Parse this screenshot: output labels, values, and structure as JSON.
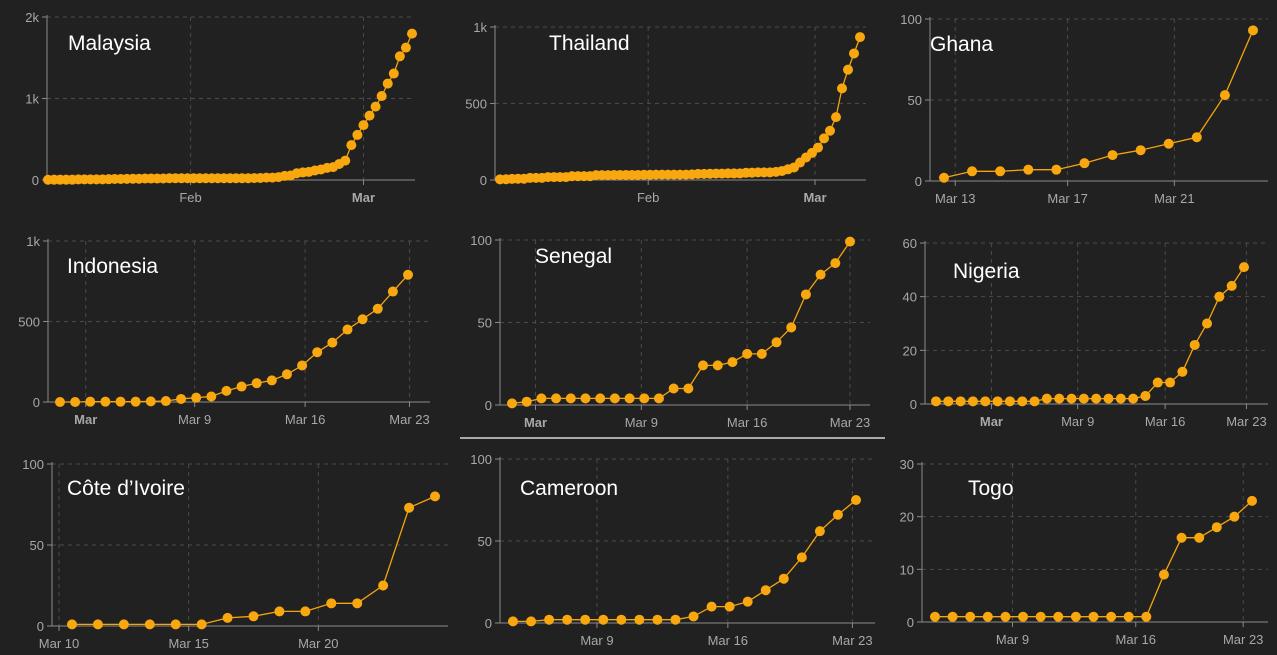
{
  "colors": {
    "background": "#212121",
    "series": "#f9a70e",
    "title": "#ffffff",
    "tick": "#a8a8a8"
  },
  "chart_data": [
    {
      "type": "line",
      "title": "Malaysia",
      "ylim": [
        0,
        2000
      ],
      "y_ticks": [
        {
          "value": 0,
          "label": "0"
        },
        {
          "value": 1000,
          "label": "1k"
        },
        {
          "value": 2000,
          "label": "2k"
        }
      ],
      "x_ticks": [
        {
          "index": 23.5,
          "label": "Feb"
        },
        {
          "index": 52,
          "label": "Mar"
        }
      ],
      "values": [
        3,
        4,
        4,
        4,
        4,
        7,
        8,
        8,
        8,
        8,
        10,
        12,
        12,
        14,
        16,
        16,
        18,
        18,
        18,
        19,
        22,
        22,
        22,
        22,
        22,
        22,
        22,
        22,
        22,
        22,
        22,
        22,
        22,
        22,
        23,
        25,
        29,
        29,
        36,
        50,
        55,
        83,
        93,
        99,
        117,
        129,
        149,
        158,
        197,
        238,
        428,
        553,
        673,
        790,
        900,
        1030,
        1183,
        1306,
        1518,
        1624,
        1796
      ]
    },
    {
      "type": "line",
      "title": "Thailand",
      "ylim": [
        0,
        1000
      ],
      "y_ticks": [
        {
          "value": 0,
          "label": "0"
        },
        {
          "value": 500,
          "label": "500"
        },
        {
          "value": 1000,
          "label": "1k"
        }
      ],
      "x_ticks": [
        {
          "index": 24.7,
          "label": "Feb"
        },
        {
          "index": 52.5,
          "label": "Mar"
        }
      ],
      "values": [
        4,
        5,
        7,
        8,
        8,
        14,
        14,
        14,
        19,
        19,
        19,
        19,
        25,
        25,
        25,
        25,
        32,
        32,
        32,
        33,
        33,
        33,
        33,
        33,
        34,
        34,
        35,
        35,
        35,
        35,
        35,
        35,
        37,
        40,
        40,
        41,
        42,
        42,
        43,
        43,
        43,
        47,
        48,
        50,
        50,
        50,
        53,
        59,
        70,
        82,
        114,
        147,
        177,
        212,
        272,
        322,
        411,
        599,
        721,
        827,
        934
      ]
    },
    {
      "type": "line",
      "title": "Ghana",
      "ylim": [
        0,
        100
      ],
      "y_ticks": [
        {
          "value": 0,
          "label": "0"
        },
        {
          "value": 50,
          "label": "50"
        },
        {
          "value": 100,
          "label": "100"
        }
      ],
      "x_ticks": [
        {
          "index": 0.4,
          "label": "Mar 13"
        },
        {
          "index": 4.4,
          "label": "Mar 17"
        },
        {
          "index": 8.2,
          "label": "Mar 21"
        }
      ],
      "values": [
        2,
        6,
        6,
        7,
        7,
        11,
        16,
        19,
        23,
        27,
        53,
        93
      ]
    },
    {
      "type": "line",
      "title": "Indonesia",
      "ylim": [
        0,
        1000
      ],
      "y_ticks": [
        {
          "value": 0,
          "label": "0"
        },
        {
          "value": 500,
          "label": "500"
        },
        {
          "value": 1000,
          "label": "1k"
        }
      ],
      "x_ticks": [
        {
          "index": 1.7,
          "label": "Mar"
        },
        {
          "index": 8.9,
          "label": "Mar 9"
        },
        {
          "index": 16.2,
          "label": "Mar 16"
        },
        {
          "index": 23.1,
          "label": "Mar 23"
        }
      ],
      "values": [
        0,
        0,
        2,
        2,
        2,
        2,
        4,
        6,
        19,
        27,
        34,
        69,
        96,
        117,
        134,
        172,
        227,
        309,
        369,
        450,
        514,
        579,
        686,
        790
      ]
    },
    {
      "type": "line",
      "title": "Senegal",
      "ylim": [
        0,
        100
      ],
      "y_ticks": [
        {
          "value": 0,
          "label": "0"
        },
        {
          "value": 50,
          "label": "50"
        },
        {
          "value": 100,
          "label": "100"
        }
      ],
      "x_ticks": [
        {
          "index": 1.6,
          "label": "Mar"
        },
        {
          "index": 8.8,
          "label": "Mar 9"
        },
        {
          "index": 16,
          "label": "Mar 16"
        },
        {
          "index": 23,
          "label": "Mar 23"
        }
      ],
      "values": [
        1,
        2,
        4,
        4,
        4,
        4,
        4,
        4,
        4,
        4,
        4,
        10,
        10,
        24,
        24,
        26,
        31,
        31,
        38,
        47,
        67,
        79,
        86,
        99
      ]
    },
    {
      "type": "line",
      "title": "Nigeria",
      "ylim": [
        0,
        60
      ],
      "y_ticks": [
        {
          "value": 0,
          "label": "0"
        },
        {
          "value": 20,
          "label": "20"
        },
        {
          "value": 40,
          "label": "40"
        },
        {
          "value": 60,
          "label": "60"
        }
      ],
      "x_ticks": [
        {
          "index": 4.5,
          "label": "Mar"
        },
        {
          "index": 11.5,
          "label": "Mar 9"
        },
        {
          "index": 18.6,
          "label": "Mar 16"
        },
        {
          "index": 25.2,
          "label": "Mar 23"
        }
      ],
      "values": [
        1,
        1,
        1,
        1,
        1,
        1,
        1,
        1,
        1,
        2,
        2,
        2,
        2,
        2,
        2,
        2,
        2,
        3,
        8,
        8,
        12,
        22,
        30,
        40,
        44,
        51
      ]
    },
    {
      "type": "line",
      "title": "Côte d’Ivoire",
      "ylim": [
        0,
        100
      ],
      "y_ticks": [
        {
          "value": 0,
          "label": "0"
        },
        {
          "value": 50,
          "label": "50"
        },
        {
          "value": 100,
          "label": "100"
        }
      ],
      "x_ticks": [
        {
          "index": -0.5,
          "label": "Mar 10"
        },
        {
          "index": 4.5,
          "label": "Mar 15"
        },
        {
          "index": 9.5,
          "label": "Mar 20"
        }
      ],
      "values": [
        1,
        1,
        1,
        1,
        1,
        1,
        5,
        6,
        9,
        9,
        14,
        14,
        25,
        73,
        80
      ]
    },
    {
      "type": "line",
      "title": "Cameroon",
      "ylim": [
        0,
        100
      ],
      "y_ticks": [
        {
          "value": 0,
          "label": "0"
        },
        {
          "value": 50,
          "label": "50"
        },
        {
          "value": 100,
          "label": "100"
        }
      ],
      "x_ticks": [
        {
          "index": 4.65,
          "label": "Mar 9"
        },
        {
          "index": 11.9,
          "label": "Mar 16"
        },
        {
          "index": 18.8,
          "label": "Mar 23"
        }
      ],
      "values": [
        1,
        1,
        2,
        2,
        2,
        2,
        2,
        2,
        2,
        2,
        4,
        10,
        10,
        13,
        20,
        27,
        40,
        56,
        66,
        75
      ]
    },
    {
      "type": "line",
      "title": "Togo",
      "ylim": [
        0,
        30
      ],
      "y_ticks": [
        {
          "value": 0,
          "label": "0"
        },
        {
          "value": 10,
          "label": "10"
        },
        {
          "value": 20,
          "label": "20"
        },
        {
          "value": 30,
          "label": "30"
        }
      ],
      "x_ticks": [
        {
          "index": 4.4,
          "label": "Mar 9"
        },
        {
          "index": 11.4,
          "label": "Mar 16"
        },
        {
          "index": 17.5,
          "label": "Mar 23"
        }
      ],
      "values": [
        1,
        1,
        1,
        1,
        1,
        1,
        1,
        1,
        1,
        1,
        1,
        1,
        1,
        9,
        16,
        16,
        18,
        20,
        23
      ]
    }
  ]
}
